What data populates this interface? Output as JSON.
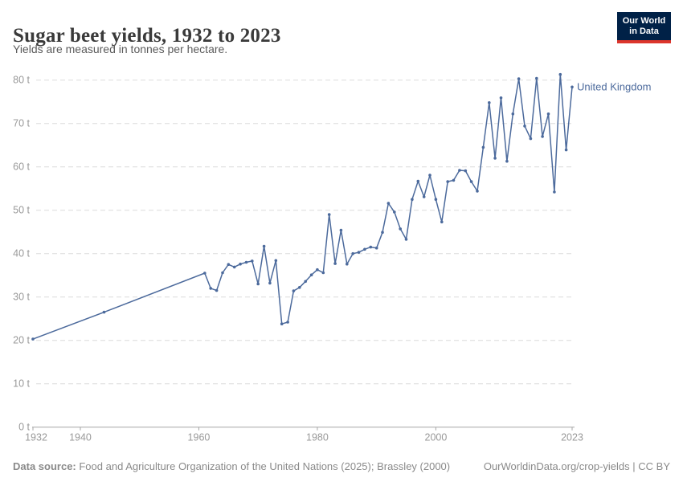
{
  "header": {
    "title": "Sugar beet yields, 1932 to 2023",
    "subtitle": "Yields are measured in tonnes per hectare.",
    "logo_line1": "Our World",
    "logo_line2": "in Data"
  },
  "chart_data": {
    "type": "line",
    "title": "Sugar beet yields, 1932 to 2023",
    "ylabel": "",
    "xlabel": "",
    "unit_suffix": " t",
    "ylim": [
      0,
      80
    ],
    "ytick_step": 10,
    "xlim": [
      1932,
      2023
    ],
    "xticks": [
      1932,
      1940,
      1960,
      1980,
      2000,
      2023
    ],
    "grid": "horizontal-dashed",
    "legend_position": "end-of-line-label",
    "series": [
      {
        "name": "United Kingdom",
        "color": "#4c6a9c",
        "points": [
          [
            1932,
            20.3
          ],
          [
            1944,
            26.5
          ],
          [
            1961,
            35.5
          ],
          [
            1962,
            32.0
          ],
          [
            1963,
            31.5
          ],
          [
            1964,
            35.6
          ],
          [
            1965,
            37.5
          ],
          [
            1966,
            36.9
          ],
          [
            1967,
            37.6
          ],
          [
            1968,
            38.0
          ],
          [
            1969,
            38.3
          ],
          [
            1970,
            33.0
          ],
          [
            1971,
            41.7
          ],
          [
            1972,
            33.2
          ],
          [
            1973,
            38.4
          ],
          [
            1974,
            23.8
          ],
          [
            1975,
            24.2
          ],
          [
            1976,
            31.4
          ],
          [
            1977,
            32.2
          ],
          [
            1978,
            33.6
          ],
          [
            1979,
            35.1
          ],
          [
            1980,
            36.3
          ],
          [
            1981,
            35.6
          ],
          [
            1982,
            49.0
          ],
          [
            1983,
            37.7
          ],
          [
            1984,
            45.4
          ],
          [
            1985,
            37.6
          ],
          [
            1986,
            40.0
          ],
          [
            1987,
            40.3
          ],
          [
            1988,
            41.0
          ],
          [
            1989,
            41.5
          ],
          [
            1990,
            41.3
          ],
          [
            1991,
            44.9
          ],
          [
            1992,
            51.6
          ],
          [
            1993,
            49.6
          ],
          [
            1994,
            45.7
          ],
          [
            1995,
            43.3
          ],
          [
            1996,
            52.5
          ],
          [
            1997,
            56.7
          ],
          [
            1998,
            53.1
          ],
          [
            1999,
            58.1
          ],
          [
            2000,
            52.5
          ],
          [
            2001,
            47.3
          ],
          [
            2002,
            56.6
          ],
          [
            2003,
            56.9
          ],
          [
            2004,
            59.2
          ],
          [
            2005,
            59.1
          ],
          [
            2006,
            56.6
          ],
          [
            2007,
            54.4
          ],
          [
            2008,
            64.5
          ],
          [
            2009,
            74.8
          ],
          [
            2010,
            62.0
          ],
          [
            2011,
            75.9
          ],
          [
            2012,
            61.3
          ],
          [
            2013,
            72.2
          ],
          [
            2014,
            80.3
          ],
          [
            2015,
            69.4
          ],
          [
            2016,
            66.5
          ],
          [
            2017,
            80.4
          ],
          [
            2018,
            67.0
          ],
          [
            2019,
            72.2
          ],
          [
            2020,
            54.2
          ],
          [
            2021,
            81.3
          ],
          [
            2022,
            63.9
          ],
          [
            2023,
            78.4
          ]
        ]
      }
    ]
  },
  "footer": {
    "datasource_label": "Data source:",
    "datasource_text": " Food and Agriculture Organization of the United Nations (2025); Brassley (2000)",
    "license_text": "OurWorldinData.org/crop-yields | CC BY"
  },
  "colors": {
    "line": "#4c6a9c",
    "gridline": "#dcdcdc",
    "axis": "#a5a5a5",
    "tick_label": "#999999",
    "logo_bg": "#002147",
    "logo_stripe": "#dc352c"
  }
}
